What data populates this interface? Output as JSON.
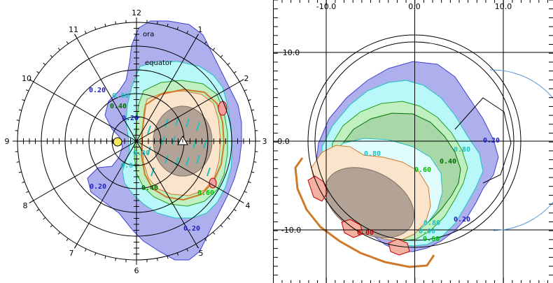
{
  "left_panel": {
    "clock_labels": [
      "12",
      "1",
      "2",
      "3",
      "4",
      "5",
      "6",
      "7",
      "8",
      "9",
      "10",
      "11"
    ],
    "annotations": {
      "ora": "ora",
      "equator": "equator"
    },
    "contours": [
      {
        "value": "0.20",
        "color": "#2020c0"
      },
      {
        "value": "0.40",
        "color": "#007000"
      },
      {
        "value": "0.20",
        "color": "#2020c0"
      },
      {
        "value": "0.40",
        "color": "#007000"
      },
      {
        "value": "0.60",
        "color": "#00c000"
      },
      {
        "value": "0.80",
        "color": "#20c0c0"
      },
      {
        "value": "0.20",
        "color": "#2020c0"
      },
      {
        "value": "0.80",
        "color": "#20c0c0"
      },
      {
        "value": "0.0",
        "color": "#20c0c0"
      },
      {
        "value": "0.20",
        "color": "#2020c0"
      }
    ],
    "colors": {
      "blue": "#aeb0ee",
      "cyan": "#b8f8f8",
      "peach": "#fae4cc",
      "gray": "#b3a396",
      "sun": "#f4e85a",
      "orange": "#cf7a2a"
    }
  },
  "right_panel": {
    "x_tick_labels": [
      "-10.0",
      "0.0",
      "10.0"
    ],
    "y_tick_labels": [
      "10.0",
      "0.0",
      "-10.0"
    ],
    "contours": [
      {
        "value": "0.20",
        "color": "#2020c0"
      },
      {
        "value": "0.80",
        "color": "#20c0c0"
      },
      {
        "value": "0.40",
        "color": "#007000"
      },
      {
        "value": "0.60",
        "color": "#00c000"
      },
      {
        "value": "0.80",
        "color": "#20c0c0"
      },
      {
        "value": "0.20",
        "color": "#2020c0"
      },
      {
        "value": "0.80",
        "color": "#20c0c0"
      },
      {
        "value": "0.60",
        "color": "#00c000"
      },
      {
        "value": "0.00",
        "color": "#c00000"
      },
      {
        "value": "0.00",
        "color": "#20c0c0"
      }
    ]
  }
}
